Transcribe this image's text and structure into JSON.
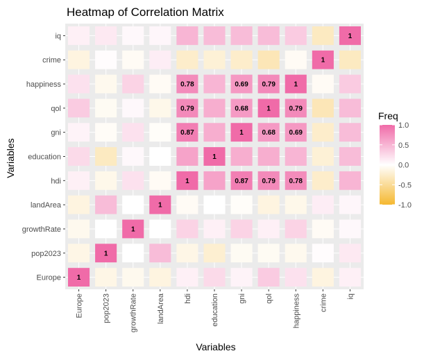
{
  "chart_data": {
    "type": "heatmap",
    "title": "Heatmap of Correlation Matrix",
    "xlabel": "Variables",
    "ylabel": "Variables",
    "variables": [
      "Europe",
      "pop2023",
      "growthRate",
      "landArea",
      "hdi",
      "education",
      "gni",
      "qol",
      "happiness",
      "crime",
      "iq"
    ],
    "matrix": [
      [
        1.0,
        -0.12,
        -0.08,
        -0.15,
        0.1,
        0.25,
        0.08,
        0.35,
        0.2,
        -0.15,
        0.1
      ],
      [
        -0.12,
        1.0,
        0.0,
        0.45,
        -0.12,
        -0.22,
        -0.06,
        -0.06,
        -0.08,
        0.02,
        0.15
      ],
      [
        -0.08,
        0.0,
        1.0,
        0.0,
        0.3,
        0.1,
        0.3,
        0.1,
        0.3,
        -0.05,
        0.05
      ],
      [
        -0.15,
        0.45,
        0.0,
        1.0,
        -0.05,
        0.0,
        -0.03,
        -0.15,
        -0.1,
        0.12,
        0.06
      ],
      [
        0.1,
        -0.1,
        0.2,
        -0.05,
        1.0,
        0.62,
        0.87,
        0.79,
        0.78,
        -0.25,
        0.5
      ],
      [
        0.25,
        -0.3,
        0.05,
        0.0,
        0.62,
        1.0,
        0.55,
        0.55,
        0.5,
        -0.2,
        0.45
      ],
      [
        0.08,
        -0.04,
        0.2,
        -0.03,
        0.87,
        0.55,
        1.0,
        0.68,
        0.69,
        -0.25,
        0.45
      ],
      [
        0.35,
        -0.06,
        0.05,
        -0.1,
        0.79,
        0.55,
        0.68,
        1.0,
        0.79,
        -0.35,
        0.45
      ],
      [
        0.2,
        -0.08,
        0.3,
        -0.05,
        0.78,
        0.5,
        0.69,
        0.79,
        1.0,
        -0.05,
        0.35
      ],
      [
        -0.15,
        0.02,
        -0.05,
        0.12,
        -0.25,
        -0.2,
        -0.25,
        -0.35,
        -0.05,
        1.0,
        -0.3
      ],
      [
        0.1,
        0.15,
        0.05,
        0.06,
        0.5,
        0.45,
        0.45,
        0.45,
        0.35,
        -0.3,
        1.0
      ]
    ],
    "cell_labels": [
      {
        "x": "Europe",
        "y": "Europe",
        "text": "1"
      },
      {
        "x": "pop2023",
        "y": "pop2023",
        "text": "1"
      },
      {
        "x": "growthRate",
        "y": "growthRate",
        "text": "1"
      },
      {
        "x": "landArea",
        "y": "landArea",
        "text": "1"
      },
      {
        "x": "hdi",
        "y": "hdi",
        "text": "1"
      },
      {
        "x": "gni",
        "y": "hdi",
        "text": "0.87"
      },
      {
        "x": "qol",
        "y": "hdi",
        "text": "0.79"
      },
      {
        "x": "happiness",
        "y": "hdi",
        "text": "0.78"
      },
      {
        "x": "education",
        "y": "education",
        "text": "1"
      },
      {
        "x": "hdi",
        "y": "gni",
        "text": "0.87"
      },
      {
        "x": "gni",
        "y": "gni",
        "text": "1"
      },
      {
        "x": "qol",
        "y": "gni",
        "text": "0.68"
      },
      {
        "x": "happiness",
        "y": "gni",
        "text": "0.69"
      },
      {
        "x": "hdi",
        "y": "qol",
        "text": "0.79"
      },
      {
        "x": "gni",
        "y": "qol",
        "text": "0.68"
      },
      {
        "x": "qol",
        "y": "qol",
        "text": "1"
      },
      {
        "x": "happiness",
        "y": "qol",
        "text": "0.79"
      },
      {
        "x": "hdi",
        "y": "happiness",
        "text": "0.78"
      },
      {
        "x": "gni",
        "y": "happiness",
        "text": "0.69"
      },
      {
        "x": "qol",
        "y": "happiness",
        "text": "0.79"
      },
      {
        "x": "happiness",
        "y": "happiness",
        "text": "1"
      },
      {
        "x": "crime",
        "y": "crime",
        "text": "1"
      },
      {
        "x": "iq",
        "y": "iq",
        "text": "1"
      }
    ],
    "legend": {
      "title": "Freq",
      "placement": "right",
      "ticks": [
        "1.0",
        "0.5",
        "0.0",
        "-0.5",
        "-1.0"
      ],
      "tick_values": [
        1.0,
        0.5,
        0.0,
        -0.5,
        -1.0
      ],
      "range": [
        -1.0,
        1.0
      ]
    },
    "colors": {
      "high": "#f06ba8",
      "mid": "#ffffff",
      "low": "#f5b830",
      "panel_background": "#ebebeb",
      "grid": "#ffffff"
    },
    "grid": true
  }
}
